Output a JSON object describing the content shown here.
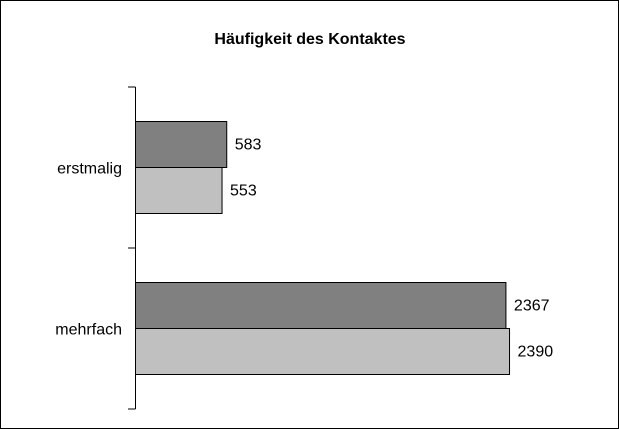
{
  "chart_data": {
    "type": "hbar",
    "title": "Häufigkeit des Kontaktes",
    "categories": [
      "erstmalig",
      "mehrfach"
    ],
    "series": [
      {
        "color": "#808080",
        "values": [
          583,
          2367
        ]
      },
      {
        "color": "#c0c0c0",
        "values": [
          553,
          2390
        ]
      }
    ],
    "xlim": [
      0,
      3000
    ]
  }
}
